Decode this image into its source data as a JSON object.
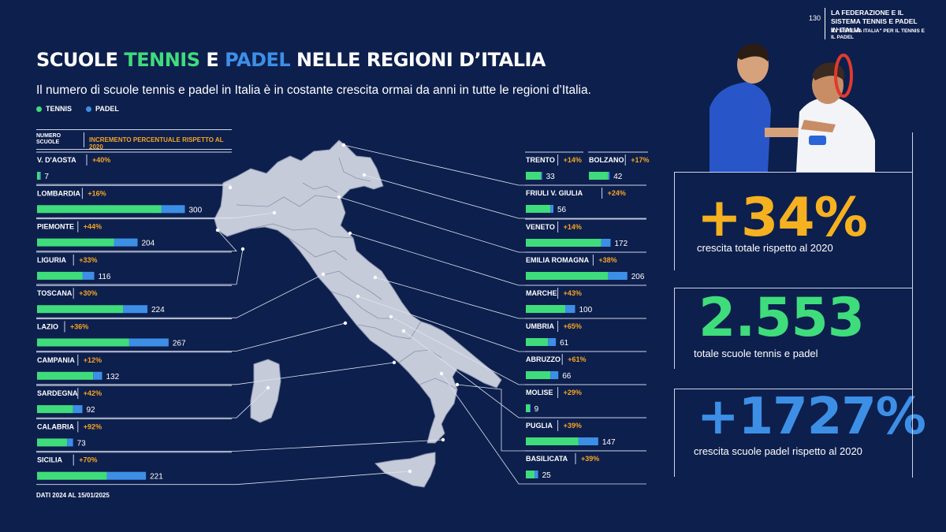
{
  "header": {
    "page_number": "130",
    "section_title": "LA FEDERAZIONE E IL SISTEMA TENNIS E PADEL IN ITALIA",
    "section_subtitle": "IL \"SISTEMA ITALIA\" PER IL TENNIS E IL PADEL"
  },
  "title": {
    "part1": "SCUOLE ",
    "part2": "TENNIS",
    "part3": " E ",
    "part4": "PADEL",
    "part5": " NELLE REGIONI D’ITALIA"
  },
  "subtitle": "Il numero di scuole tennis e padel in Italia è in costante crescita ormai da anni in tutte le regioni d’Italia.",
  "legend": {
    "tennis": "TENNIS",
    "padel": "PADEL"
  },
  "table_header": {
    "count_line1": "NUMERO",
    "count_line2": "SCUOLE",
    "increment": "INCREMENTO PERCENTUALE RISPETTO AL 2020"
  },
  "footnote": "DATI 2024 AL 15/01/2025",
  "colors": {
    "background": "#0d1f4d",
    "tennis": "#3fdc7c",
    "padel": "#3d8fe6",
    "increment": "#f5a524",
    "map": "#c5cbd9"
  },
  "stats": [
    {
      "value": "+34%",
      "label": "crescita totale rispetto al 2020",
      "color": "#f5b120"
    },
    {
      "value": "2.553",
      "label": "totale scuole tennis e padel",
      "color": "#3fdc7c"
    },
    {
      "value": "+1727%",
      "label": "crescita scuole padel rispetto al 2020",
      "color": "#3d8fe6"
    }
  ],
  "chart_data": {
    "type": "bar",
    "stacked": true,
    "series_names": [
      "TENNIS",
      "PADEL"
    ],
    "regions": [
      {
        "name": "V. D'AOSTA",
        "increment": "+40%",
        "total": 7,
        "tennis": 6,
        "padel": 1
      },
      {
        "name": "LOMBARDIA",
        "increment": "+16%",
        "total": 300,
        "tennis": 252,
        "padel": 48
      },
      {
        "name": "PIEMONTE",
        "increment": "+44%",
        "total": 204,
        "tennis": 156,
        "padel": 48
      },
      {
        "name": "LIGURIA",
        "increment": "+33%",
        "total": 116,
        "tennis": 92,
        "padel": 24
      },
      {
        "name": "TOSCANA",
        "increment": "+30%",
        "total": 224,
        "tennis": 175,
        "padel": 49
      },
      {
        "name": "LAZIO",
        "increment": "+36%",
        "total": 267,
        "tennis": 187,
        "padel": 80
      },
      {
        "name": "CAMPANIA",
        "increment": "+12%",
        "total": 132,
        "tennis": 114,
        "padel": 18
      },
      {
        "name": "SARDEGNA",
        "increment": "+42%",
        "total": 92,
        "tennis": 73,
        "padel": 19
      },
      {
        "name": "CALABRIA",
        "increment": "+92%",
        "total": 73,
        "tennis": 61,
        "padel": 12
      },
      {
        "name": "SICILIA",
        "increment": "+70%",
        "total": 221,
        "tennis": 142,
        "padel": 79
      },
      {
        "name": "TRENTO",
        "increment": "+14%",
        "total": 33,
        "tennis": 31,
        "padel": 2
      },
      {
        "name": "BOLZANO",
        "increment": "+17%",
        "total": 42,
        "tennis": 39,
        "padel": 3
      },
      {
        "name": "FRIULI V. GIULIA",
        "increment": "+24%",
        "total": 56,
        "tennis": 50,
        "padel": 6
      },
      {
        "name": "VENETO",
        "increment": "+14%",
        "total": 172,
        "tennis": 153,
        "padel": 19
      },
      {
        "name": "EMILIA ROMAGNA",
        "increment": "+38%",
        "total": 206,
        "tennis": 167,
        "padel": 39
      },
      {
        "name": "MARCHE",
        "increment": "+43%",
        "total": 100,
        "tennis": 80,
        "padel": 20
      },
      {
        "name": "UMBRIA",
        "increment": "+65%",
        "total": 61,
        "tennis": 45,
        "padel": 16
      },
      {
        "name": "ABRUZZO",
        "increment": "+61%",
        "total": 66,
        "tennis": 50,
        "padel": 16
      },
      {
        "name": "MOLISE",
        "increment": "+29%",
        "total": 9,
        "tennis": 8,
        "padel": 1
      },
      {
        "name": "PUGLIA",
        "increment": "+39%",
        "total": 147,
        "tennis": 107,
        "padel": 40
      },
      {
        "name": "BASILICATA",
        "increment": "+39%",
        "total": 25,
        "tennis": 18,
        "padel": 7
      }
    ]
  }
}
